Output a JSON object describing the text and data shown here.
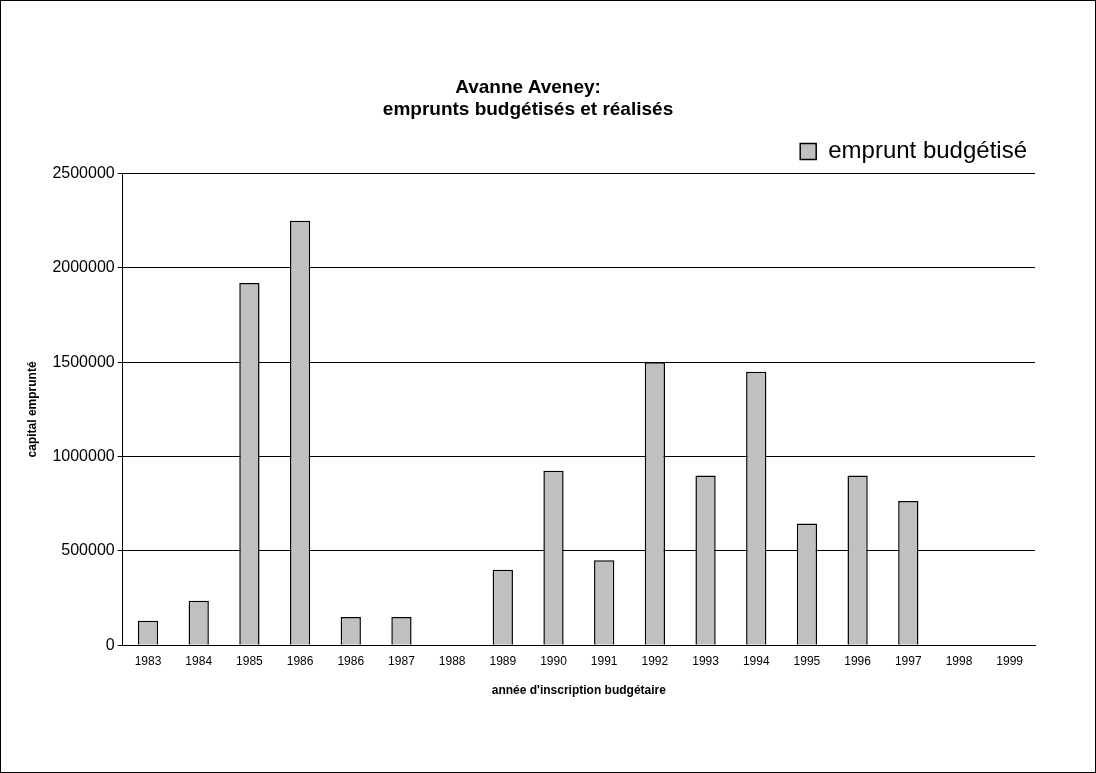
{
  "chart_data": {
    "type": "bar",
    "title": [
      "Avanne Aveney:",
      "emprunts budgétisés et réalisés"
    ],
    "xlabel": "année d'inscription budgétaire",
    "ylabel": "capital emprunté",
    "categories": [
      "1983",
      "1984",
      "1985",
      "1986",
      "1986",
      "1987",
      "1988",
      "1989",
      "1990",
      "1991",
      "1992",
      "1993",
      "1994",
      "1995",
      "1996",
      "1997",
      "1998",
      "1999"
    ],
    "series": [
      {
        "name": "emprunt budgétisé",
        "color": "#c0c0c0",
        "values": [
          130000,
          235000,
          1920000,
          2250000,
          150000,
          150000,
          0,
          400000,
          925000,
          450000,
          1500000,
          900000,
          1450000,
          645000,
          900000,
          765000,
          0,
          0
        ]
      }
    ],
    "ylim": [
      0,
      2500000
    ],
    "yticks": [
      0,
      500000,
      1000000,
      1500000,
      2000000,
      2500000
    ],
    "grid": "y",
    "legend": "top right"
  }
}
